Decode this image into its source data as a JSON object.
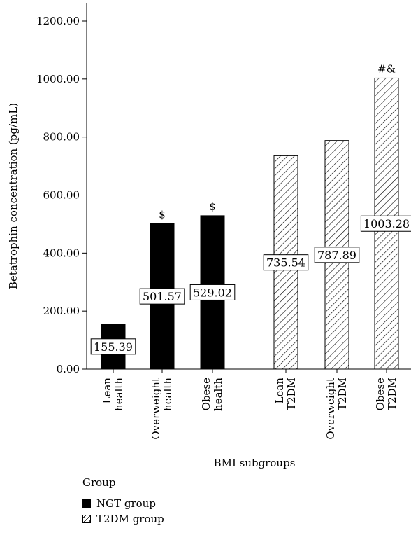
{
  "chart_data": {
    "type": "bar",
    "ylabel": "Betatrophin concentration (pg/mL)",
    "xlabel": "BMI subgroups",
    "ylim": [
      0,
      1200
    ],
    "yticks": [
      "0.00",
      "200.00",
      "400.00",
      "600.00",
      "800.00",
      "1000.00",
      "1200.00"
    ],
    "categories": [
      [
        "Lean",
        "health"
      ],
      [
        "Overweight",
        "health"
      ],
      [
        "Obese",
        "health"
      ],
      [
        "Lean",
        "T2DM"
      ],
      [
        "Overweight",
        "T2DM"
      ],
      [
        "Obese",
        "T2DM"
      ]
    ],
    "series": [
      {
        "name": "NGT group",
        "fill": "solid",
        "values": [
          155.39,
          501.57,
          529.02,
          null,
          null,
          null
        ]
      },
      {
        "name": "T2DM group",
        "fill": "hatch",
        "values": [
          null,
          null,
          null,
          735.54,
          787.89,
          1003.28
        ]
      }
    ],
    "data_labels": [
      "155.39",
      "501.57",
      "529.02",
      "735.54",
      "787.89",
      "1003.28"
    ],
    "annotations": [
      "",
      "$",
      "$",
      "",
      "",
      "#&"
    ],
    "legend": {
      "title": "Group",
      "items": [
        "NGT group",
        "T2DM group"
      ],
      "position": "bottom-left"
    },
    "grid": false
  }
}
